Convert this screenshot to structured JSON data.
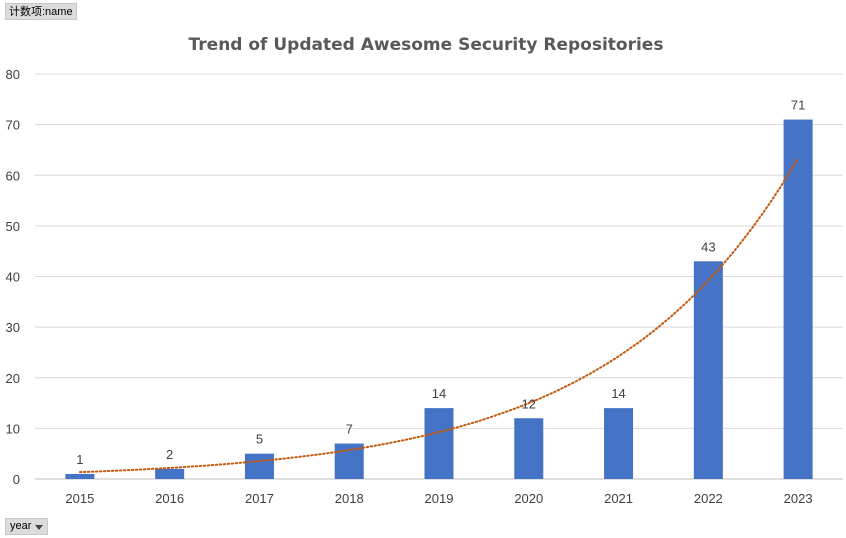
{
  "pivot": {
    "value_field_label": "计数项:name",
    "axis_field_label": "year"
  },
  "chart_data": {
    "type": "bar",
    "title": "Trend of Updated Awesome Security Repositories",
    "xlabel": "",
    "ylabel": "",
    "categories": [
      "2015",
      "2016",
      "2017",
      "2018",
      "2019",
      "2020",
      "2021",
      "2022",
      "2023"
    ],
    "series": [
      {
        "values": [
          1,
          2,
          5,
          7,
          14,
          12,
          14,
          43,
          71
        ],
        "color": "#4472C4",
        "data_labels": true
      }
    ],
    "trendline": {
      "kind": "exponential",
      "color": "#C55A11",
      "style": "dotted"
    },
    "ylim": [
      0,
      80
    ],
    "yticks": [
      0,
      10,
      20,
      30,
      40,
      50,
      60,
      70,
      80
    ],
    "grid": true,
    "legend": "none"
  }
}
